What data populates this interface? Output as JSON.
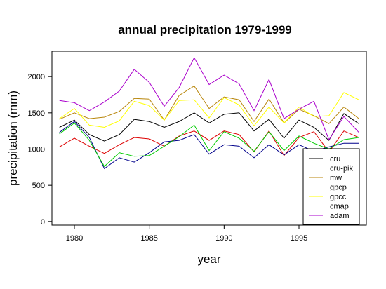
{
  "chart_data": {
    "type": "line",
    "title": "annual precipitation 1979-1999",
    "xlabel": "year",
    "ylabel": "precipitation (mm)",
    "xlim": [
      1978.5,
      1999.5
    ],
    "ylim": [
      -50,
      2350
    ],
    "x_ticks": [
      1980,
      1985,
      1990,
      1995
    ],
    "y_ticks": [
      0,
      500,
      1000,
      1500,
      2000
    ],
    "grid": false,
    "legend_position": "bottom-right",
    "x": [
      1979,
      1980,
      1981,
      1982,
      1983,
      1984,
      1985,
      1986,
      1987,
      1988,
      1989,
      1990,
      1991,
      1992,
      1993,
      1994,
      1995,
      1996,
      1997,
      1998,
      1999
    ],
    "series": [
      {
        "name": "cru",
        "color": "#000000",
        "values": [
          1300,
          1400,
          1200,
          1110,
          1200,
          1410,
          1380,
          1300,
          1380,
          1500,
          1360,
          1480,
          1500,
          1250,
          1410,
          1150,
          1400,
          1300,
          1120,
          1490,
          1350
        ]
      },
      {
        "name": "cru-pik",
        "color": "#dd0000",
        "values": [
          1030,
          1150,
          1040,
          940,
          1060,
          1160,
          1140,
          1040,
          1180,
          1250,
          1120,
          1250,
          1200,
          960,
          1250,
          910,
          1160,
          1240,
          960,
          1250,
          1160
        ]
      },
      {
        "name": "mw",
        "color": "#b8860b",
        "values": [
          1410,
          1500,
          1420,
          1440,
          1520,
          1700,
          1690,
          1400,
          1740,
          1870,
          1560,
          1720,
          1680,
          1380,
          1690,
          1360,
          1550,
          1460,
          1350,
          1580,
          1420
        ]
      },
      {
        "name": "gpcp",
        "color": "#00008b",
        "values": [
          1230,
          1380,
          1160,
          730,
          880,
          820,
          950,
          1100,
          1120,
          1200,
          930,
          1060,
          1040,
          880,
          1060,
          920,
          1060,
          970,
          1030,
          1080,
          1080
        ]
      },
      {
        "name": "gpcc",
        "color": "#ffff00",
        "values": [
          1420,
          1560,
          1330,
          1300,
          1390,
          1660,
          1600,
          1400,
          1670,
          1680,
          1430,
          1710,
          1610,
          1320,
          1580,
          1360,
          1580,
          1450,
          1460,
          1780,
          1680
        ]
      },
      {
        "name": "cmap",
        "color": "#00cc00",
        "values": [
          1210,
          1360,
          1120,
          760,
          950,
          900,
          910,
          1040,
          1170,
          1330,
          980,
          1240,
          1150,
          970,
          1240,
          980,
          1180,
          1080,
          1000,
          1130,
          1160
        ]
      },
      {
        "name": "adam",
        "color": "#aa00cc",
        "values": [
          1670,
          1640,
          1530,
          1650,
          1800,
          2100,
          1920,
          1590,
          1850,
          2260,
          1890,
          2020,
          1900,
          1530,
          1960,
          1420,
          1550,
          1660,
          1130,
          1450,
          1230
        ]
      }
    ]
  }
}
